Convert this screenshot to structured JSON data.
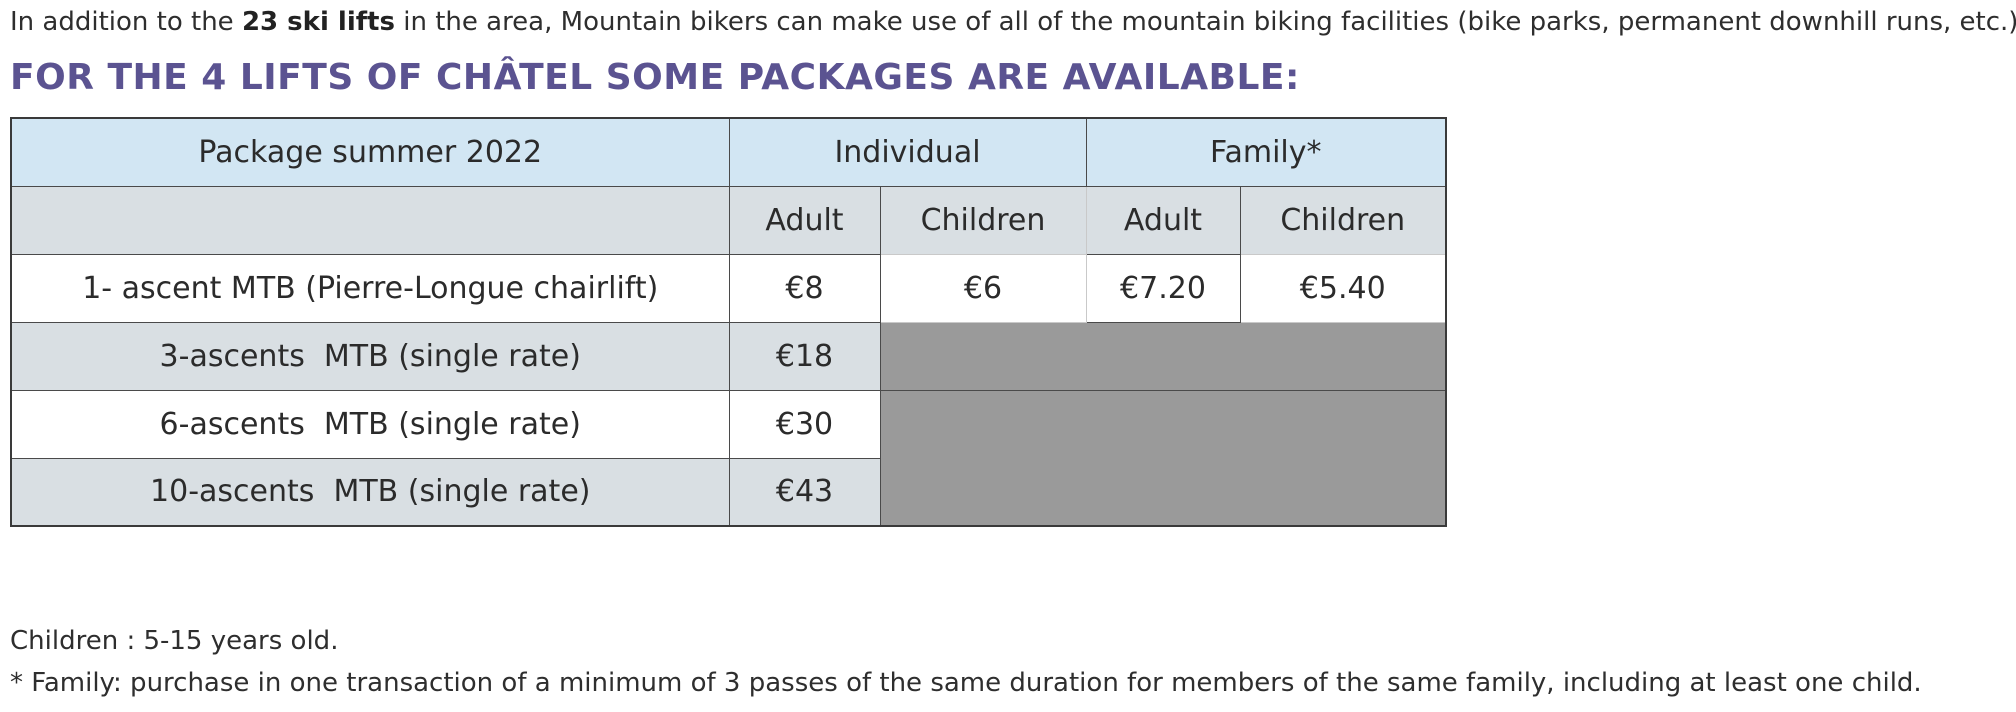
{
  "intro": {
    "before": "In addition to the ",
    "bold": "23 ski lifts",
    "after": " in the area, Mountain bikers can make use of all of the mountain biking facilities (bike parks, permanent downhill runs, etc.)."
  },
  "heading": "FOR THE 4 LIFTS OF CHÂTEL SOME PACKAGES ARE AVAILABLE:",
  "table": {
    "header": {
      "package": "Package summer 2022",
      "individual": "Individual",
      "family": "Family*"
    },
    "subheader": {
      "ind_adult": "Adult",
      "ind_children": "Children",
      "fam_adult": "Adult",
      "fam_children": "Children"
    },
    "rows": [
      {
        "name": "1- ascent MTB (Pierre-Longue chairlift)",
        "ind_adult": "€8",
        "ind_children": "€6",
        "fam_adult": "€7.20",
        "fam_children": "€5.40"
      },
      {
        "name": "3-ascents  MTB (single rate)",
        "ind_adult": "€18"
      },
      {
        "name": "6-ascents  MTB (single rate)",
        "ind_adult": "€30"
      },
      {
        "name": "10-ascents  MTB (single rate)",
        "ind_adult": "€43"
      }
    ]
  },
  "notes": {
    "children": "Children : 5-15 years old.",
    "family": "* Family: purchase in one transaction of a minimum of 3 passes of the same duration for members of the same family, including at least one child."
  }
}
